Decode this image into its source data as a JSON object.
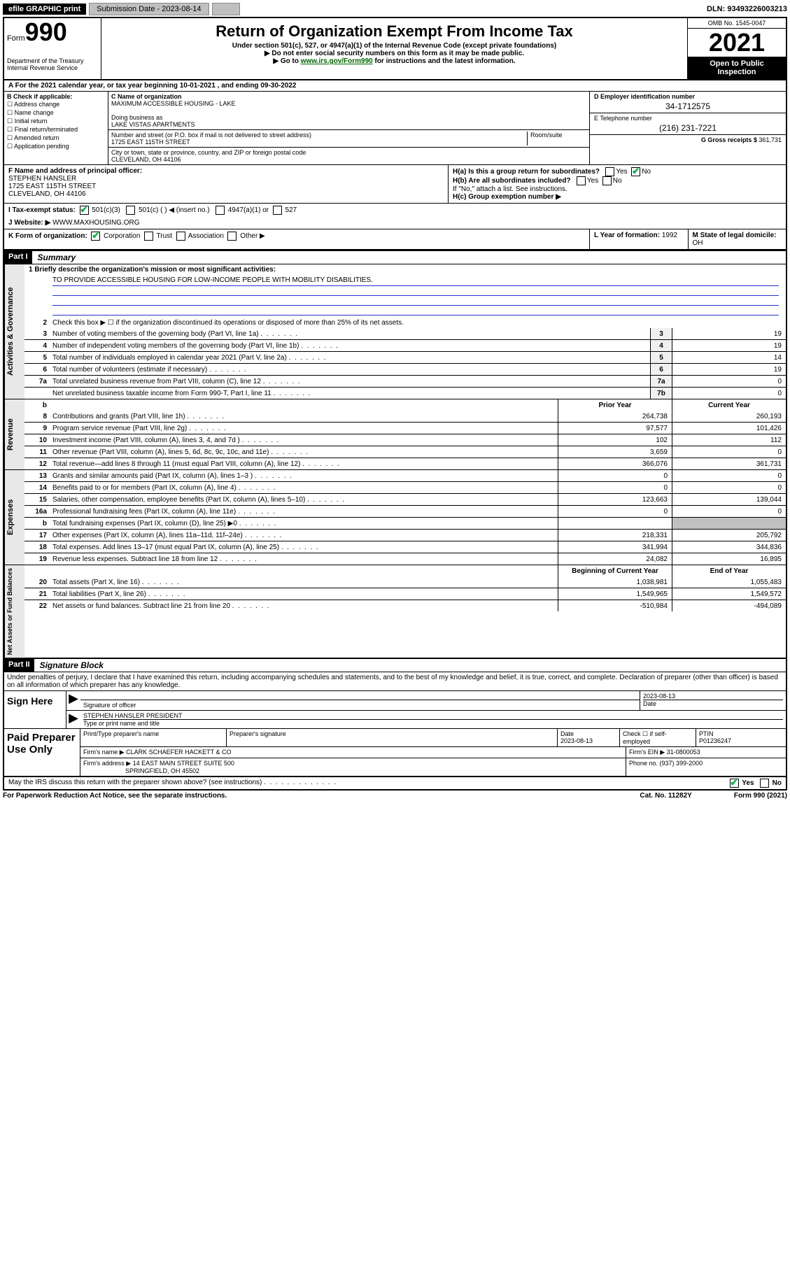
{
  "topbar": {
    "efile": "efile GRAPHIC print",
    "submission_label": "Submission Date - 2023-08-14",
    "dln": "DLN: 93493226003213"
  },
  "header": {
    "form_word": "Form",
    "form_num": "990",
    "dept": "Department of the Treasury Internal Revenue Service",
    "title": "Return of Organization Exempt From Income Tax",
    "subtitle": "Under section 501(c), 527, or 4947(a)(1) of the Internal Revenue Code (except private foundations)",
    "note1": "▶ Do not enter social security numbers on this form as it may be made public.",
    "note2_pre": "▶ Go to ",
    "note2_link": "www.irs.gov/Form990",
    "note2_post": " for instructions and the latest information.",
    "omb": "OMB No. 1545-0047",
    "year": "2021",
    "open": "Open to Public Inspection"
  },
  "row_a": "A For the 2021 calendar year, or tax year beginning 10-01-2021   , and ending 09-30-2022",
  "col_b": {
    "label": "B Check if applicable:",
    "opts": [
      "☐ Address change",
      "☐ Name change",
      "☐ Initial return",
      "☐ Final return/terminated",
      "☐ Amended return",
      "☐ Application pending"
    ]
  },
  "col_c": {
    "c_label": "C Name of organization",
    "c_name": "MAXIMUM ACCESSIBLE HOUSING - LAKE",
    "dba_label": "Doing business as",
    "dba": "LAKE VISTAS APARTMENTS",
    "addr_label": "Number and street (or P.O. box if mail is not delivered to street address)",
    "room_label": "Room/suite",
    "addr": "1725 EAST 115TH STREET",
    "city_label": "City or town, state or province, country, and ZIP or foreign postal code",
    "city": "CLEVELAND, OH  44106"
  },
  "col_d": {
    "d_label": "D Employer identification number",
    "ein": "34-1712575",
    "e_label": "E Telephone number",
    "phone": "(216) 231-7221",
    "g_label": "G Gross receipts $ ",
    "g_val": "361,731"
  },
  "fblock": {
    "f_label": "F Name and address of principal officer:",
    "f_name": "STEPHEN HANSLER",
    "f_addr1": "1725 EAST 115TH STREET",
    "f_addr2": "CLEVELAND, OH  44106",
    "ha_label": "H(a)  Is this a group return for subordinates?",
    "ha_yes": "Yes",
    "ha_no": "No",
    "hb_label": "H(b)  Are all subordinates included?",
    "hb_note": "If \"No,\" attach a list. See instructions.",
    "hc_label": "H(c)  Group exemption number ▶"
  },
  "status": {
    "i_label": "I   Tax-exempt status:",
    "opt1": "501(c)(3)",
    "opt2": "501(c) (   ) ◀ (insert no.)",
    "opt3": "4947(a)(1) or",
    "opt4": "527",
    "j_label": "J   Website: ▶ ",
    "website": "WWW.MAXHOUSING.ORG"
  },
  "korg": {
    "k_label": "K Form of organization:",
    "opts": [
      "Corporation",
      "Trust",
      "Association",
      "Other ▶"
    ],
    "l_label": "L Year of formation: ",
    "l_val": "1992",
    "m_label": "M State of legal domicile: ",
    "m_val": "OH"
  },
  "part1_label": "Part I",
  "part1_title": "Summary",
  "summary": {
    "q1_label": "1  Briefly describe the organization's mission or most significant activities:",
    "mission": "TO PROVIDE ACCESSIBLE HOUSING FOR LOW-INCOME PEOPLE WITH MOBILITY DISABILITIES.",
    "q2": "Check this box ▶ ☐  if the organization discontinued its operations or disposed of more than 25% of its net assets.",
    "lines_gov": [
      {
        "n": "3",
        "d": "Number of voting members of the governing body (Part VI, line 1a)",
        "lbl": "3",
        "v": "19"
      },
      {
        "n": "4",
        "d": "Number of independent voting members of the governing body (Part VI, line 1b)",
        "lbl": "4",
        "v": "19"
      },
      {
        "n": "5",
        "d": "Total number of individuals employed in calendar year 2021 (Part V, line 2a)",
        "lbl": "5",
        "v": "14"
      },
      {
        "n": "6",
        "d": "Total number of volunteers (estimate if necessary)",
        "lbl": "6",
        "v": "19"
      },
      {
        "n": "7a",
        "d": "Total unrelated business revenue from Part VIII, column (C), line 12",
        "lbl": "7a",
        "v": "0"
      },
      {
        "n": "",
        "d": "Net unrelated business taxable income from Form 990-T, Part I, line 11",
        "lbl": "7b",
        "v": "0"
      }
    ],
    "hdr_prior": "Prior Year",
    "hdr_curr": "Current Year",
    "rev": [
      {
        "n": "8",
        "d": "Contributions and grants (Part VIII, line 1h)",
        "p": "264,738",
        "c": "260,193"
      },
      {
        "n": "9",
        "d": "Program service revenue (Part VIII, line 2g)",
        "p": "97,577",
        "c": "101,426"
      },
      {
        "n": "10",
        "d": "Investment income (Part VIII, column (A), lines 3, 4, and 7d )",
        "p": "102",
        "c": "112"
      },
      {
        "n": "11",
        "d": "Other revenue (Part VIII, column (A), lines 5, 6d, 8c, 9c, 10c, and 11e)",
        "p": "3,659",
        "c": "0"
      },
      {
        "n": "12",
        "d": "Total revenue—add lines 8 through 11 (must equal Part VIII, column (A), line 12)",
        "p": "366,076",
        "c": "361,731"
      }
    ],
    "exp": [
      {
        "n": "13",
        "d": "Grants and similar amounts paid (Part IX, column (A), lines 1–3 )",
        "p": "0",
        "c": "0"
      },
      {
        "n": "14",
        "d": "Benefits paid to or for members (Part IX, column (A), line 4)",
        "p": "0",
        "c": "0"
      },
      {
        "n": "15",
        "d": "Salaries, other compensation, employee benefits (Part IX, column (A), lines 5–10)",
        "p": "123,663",
        "c": "139,044"
      },
      {
        "n": "16a",
        "d": "Professional fundraising fees (Part IX, column (A), line 11e)",
        "p": "0",
        "c": "0"
      },
      {
        "n": "b",
        "d": "Total fundraising expenses (Part IX, column (D), line 25) ▶0",
        "p": "",
        "c": "",
        "gray": true
      },
      {
        "n": "17",
        "d": "Other expenses (Part IX, column (A), lines 11a–11d, 11f–24e)",
        "p": "218,331",
        "c": "205,792"
      },
      {
        "n": "18",
        "d": "Total expenses. Add lines 13–17 (must equal Part IX, column (A), line 25)",
        "p": "341,994",
        "c": "344,836"
      },
      {
        "n": "19",
        "d": "Revenue less expenses. Subtract line 18 from line 12",
        "p": "24,082",
        "c": "16,895"
      }
    ],
    "hdr_beg": "Beginning of Current Year",
    "hdr_end": "End of Year",
    "net": [
      {
        "n": "20",
        "d": "Total assets (Part X, line 16)",
        "p": "1,038,981",
        "c": "1,055,483"
      },
      {
        "n": "21",
        "d": "Total liabilities (Part X, line 26)",
        "p": "1,549,965",
        "c": "1,549,572"
      },
      {
        "n": "22",
        "d": "Net assets or fund balances. Subtract line 21 from line 20",
        "p": "-510,984",
        "c": "-494,089"
      }
    ]
  },
  "side_labels": {
    "gov": "Activities & Governance",
    "rev": "Revenue",
    "exp": "Expenses",
    "net": "Net Assets or Fund Balances"
  },
  "part2_label": "Part II",
  "part2_title": "Signature Block",
  "sig": {
    "declare": "Under penalties of perjury, I declare that I have examined this return, including accompanying schedules and statements, and to the best of my knowledge and belief, it is true, correct, and complete. Declaration of preparer (other than officer) is based on all information of which preparer has any knowledge.",
    "sign_here": "Sign Here",
    "sig_officer_lbl": "Signature of officer",
    "date_lbl": "Date",
    "sig_date": "2023-08-13",
    "name_title": "STEPHEN HANSLER  PRESIDENT",
    "name_title_lbl": "Type or print name and title"
  },
  "prep": {
    "title": "Paid Preparer Use Only",
    "h1": "Print/Type preparer's name",
    "h2": "Preparer's signature",
    "h3": "Date",
    "h3v": "2023-08-13",
    "h4": "Check ☐ if self-employed",
    "h5": "PTIN",
    "h5v": "P01236247",
    "firm_lbl": "Firm's name    ▶ ",
    "firm": "CLARK SCHAEFER HACKETT & CO",
    "ein_lbl": "Firm's EIN ▶ ",
    "ein": "31-0800053",
    "addr_lbl": "Firm's address ▶ ",
    "addr1": "14 EAST MAIN STREET SUITE 500",
    "addr2": "SPRINGFIELD, OH  45502",
    "phone_lbl": "Phone no. ",
    "phone": "(937) 399-2000",
    "discuss": "May the IRS discuss this return with the preparer shown above? (see instructions)",
    "yes": "Yes",
    "no": "No"
  },
  "footer": {
    "left": "For Paperwork Reduction Act Notice, see the separate instructions.",
    "mid": "Cat. No. 11282Y",
    "right": "Form 990 (2021)"
  }
}
